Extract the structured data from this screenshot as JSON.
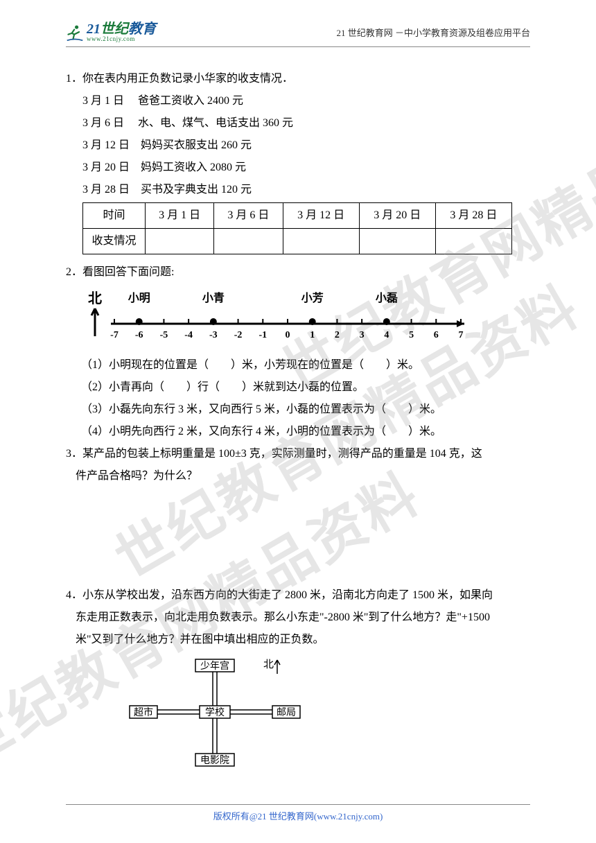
{
  "header": {
    "logo_main_a": "21",
    "logo_main_b": "世纪",
    "logo_main_c": "教育",
    "logo_sub": "www.21cnjy.com",
    "right_text": "21 世纪教育网 －中小学教育资源及组卷应用平台"
  },
  "q1": {
    "title": "1．你在表内用正负数记录小华家的收支情况．",
    "items": [
      "3 月 1 日　 爸爸工资收入 2400 元",
      "3 月 6 日　 水、电、煤气、电话支出 360 元",
      "3 月 12 日　妈妈买衣服支出 260 元",
      "3 月 20 日　妈妈工资收入 2080 元",
      "3 月 28 日　买书及字典支出 120 元"
    ],
    "table_headers": [
      "时间",
      "3 月 1 日",
      "3 月 6 日",
      "3 月 12 日",
      "3 月 20 日",
      "3 月 28 日"
    ],
    "row_label": "收支情况"
  },
  "q2": {
    "title": "2．看图回答下面问题:",
    "north": "北",
    "names": {
      "xiaoming": "小明",
      "xiaoqing": "小青",
      "xiaofang": "小芳",
      "xiaolei": "小磊"
    },
    "positions": {
      "xiaoming": -6,
      "xiaoqing": -3,
      "xiaofang": 1,
      "xiaolei": 4
    },
    "axis_range": [
      -7,
      7
    ],
    "tick_fontsize": 14,
    "name_fontsize": 16,
    "line_width": 3,
    "sub": [
      "（1）小明现在的位置是（　　）米，小芳现在的位置是（　　）米。",
      "（2）小青再向（　　）行（　　）米就到达小磊的位置。",
      "（3）小磊先向东行 3 米，又向西行 5 米，小磊的位置表示为（　　）米。",
      "（4）小明先向西行 2 米，又向东行 4 米，小明的位置表示为（　　）米。"
    ]
  },
  "q3": {
    "line1": "3．某产品的包装上标明重量是 100±3 克，实际测量时，测得产品的重量是 104 克，这",
    "line2": "件产品合格吗？为什么？"
  },
  "q4": {
    "line1": "4．小东从学校出发，沿东西方向的大街走了 2800 米，沿南北方向走了 1500 米，如果向",
    "line2": "东走用正数表示，向北走用负数表示。那么小东走\"-2800 米\"到了什么地方？走\"+1500",
    "line3": "米\"又到了什么地方？并在图中填出相应的正负数。",
    "map": {
      "north": "北",
      "labels": {
        "top": "少年宫",
        "left": "超市",
        "center": "学校",
        "right": "邮局",
        "bottom": "电影院"
      }
    }
  },
  "watermark": "世纪教育网精品资料",
  "footer": "版权所有@21 世纪教育网(www.21cnjy.com)",
  "colors": {
    "logo_green": "#1a7a3a",
    "logo_blue": "#1a5a9a",
    "text": "#000000",
    "watermark": "rgba(150,150,150,0.24)",
    "footer_link": "#3366cc",
    "border": "#888888"
  }
}
